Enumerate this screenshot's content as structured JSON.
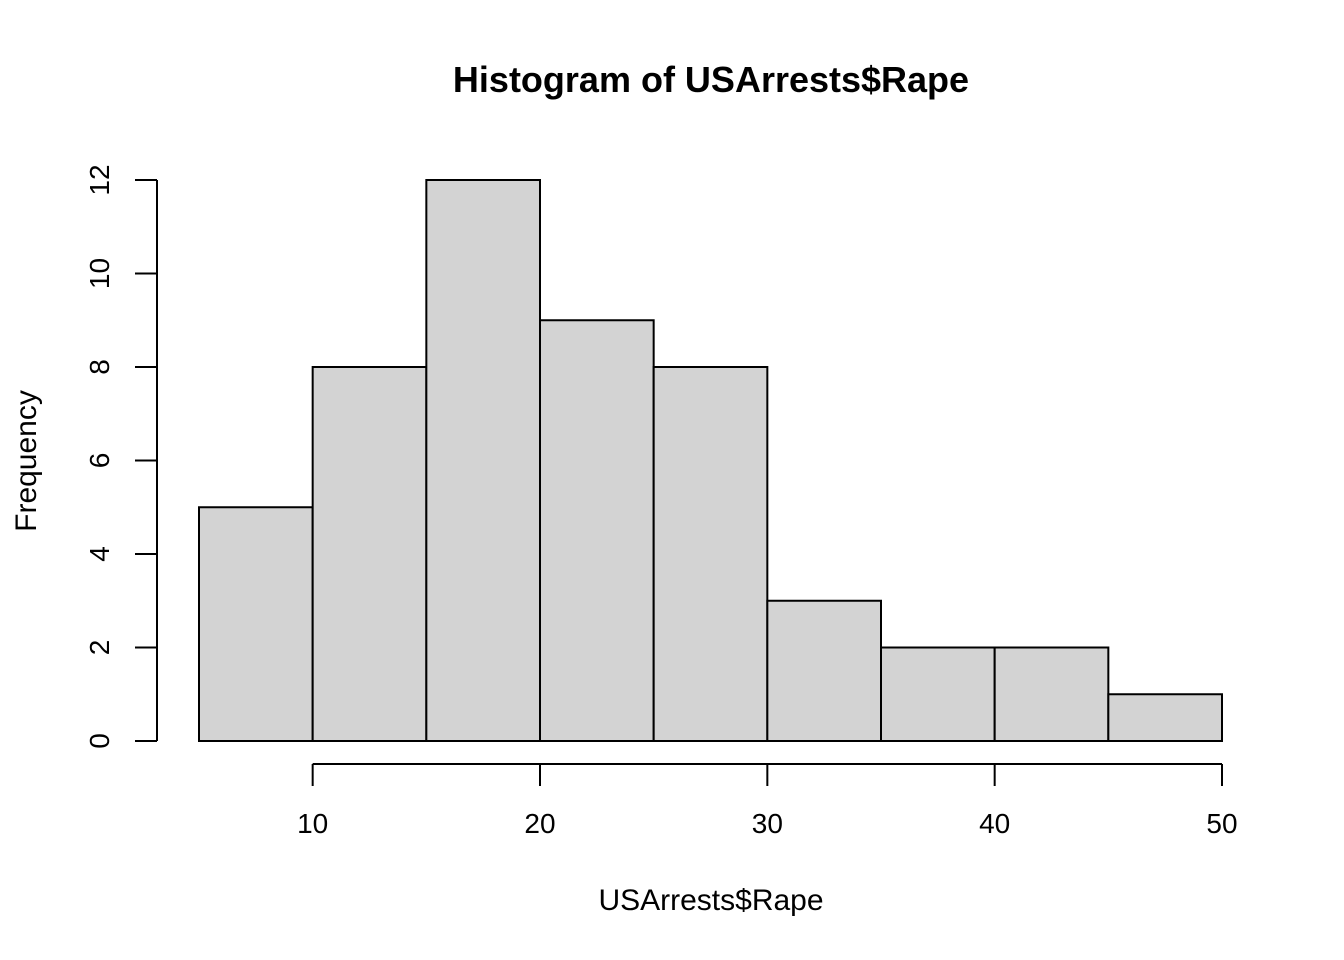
{
  "chart_data": {
    "type": "bar",
    "title": "Histogram of USArrests$Rape",
    "xlabel": "USArrests$Rape",
    "ylabel": "Frequency",
    "bins": [
      {
        "start": 5,
        "end": 10,
        "count": 5
      },
      {
        "start": 10,
        "end": 15,
        "count": 8
      },
      {
        "start": 15,
        "end": 20,
        "count": 12
      },
      {
        "start": 20,
        "end": 25,
        "count": 9
      },
      {
        "start": 25,
        "end": 30,
        "count": 8
      },
      {
        "start": 30,
        "end": 35,
        "count": 3
      },
      {
        "start": 35,
        "end": 40,
        "count": 2
      },
      {
        "start": 40,
        "end": 45,
        "count": 2
      },
      {
        "start": 45,
        "end": 50,
        "count": 1
      }
    ],
    "xticks": [
      10,
      20,
      30,
      40,
      50
    ],
    "yticks": [
      0,
      2,
      4,
      6,
      8,
      10,
      12
    ],
    "xlim": [
      5,
      50
    ],
    "ylim": [
      0,
      12
    ],
    "grid": false,
    "bar_color": "#d3d3d3",
    "border_color": "#000000"
  }
}
